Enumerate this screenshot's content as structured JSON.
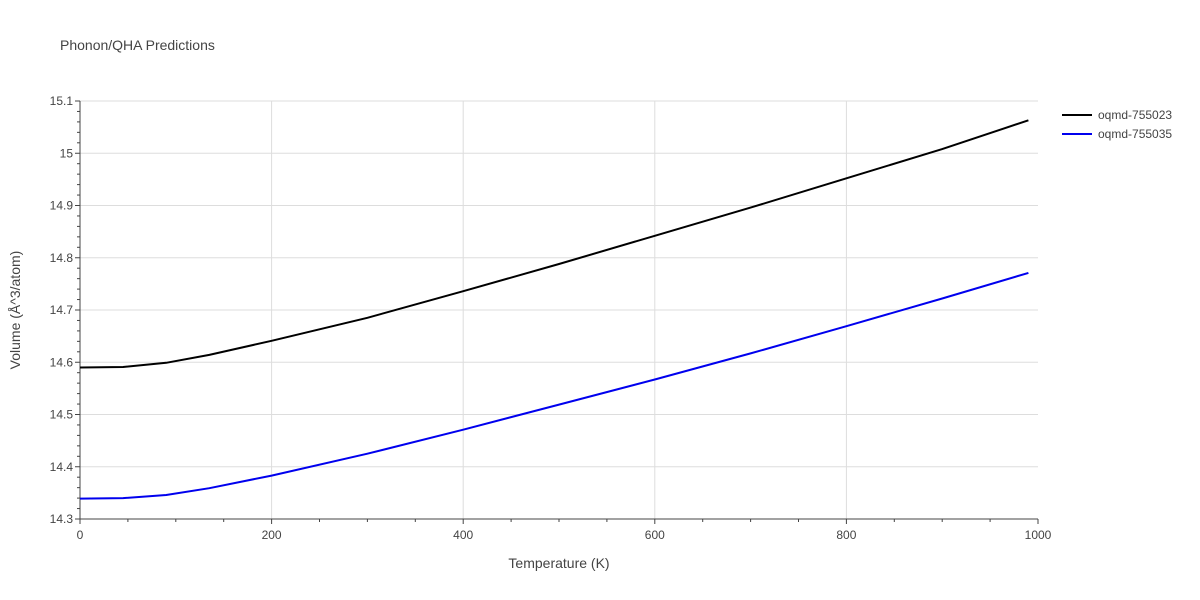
{
  "chart_data": {
    "type": "line",
    "title": "Phonon/QHA Predictions",
    "xlabel": "Temperature (K)",
    "ylabel": "Volume (Å^3/atom)",
    "xlim": [
      0,
      1000
    ],
    "ylim": [
      14.3,
      15.1
    ],
    "xticks": [
      0,
      200,
      400,
      600,
      800,
      1000
    ],
    "xtick_labels": [
      "0",
      "200",
      "400",
      "600",
      "800",
      "1000"
    ],
    "yticks": [
      14.3,
      14.4,
      14.5,
      14.6,
      14.7,
      14.8,
      14.9,
      15.0,
      15.1
    ],
    "ytick_labels": [
      "14.3",
      "14.4",
      "14.5",
      "14.6",
      "14.7",
      "14.8",
      "14.9",
      "15",
      "15.1"
    ],
    "grid": true,
    "legend_position": "top-right",
    "series": [
      {
        "name": "oqmd-755023",
        "color": "#000000",
        "x": [
          0,
          45,
          90,
          135,
          200,
          300,
          400,
          500,
          600,
          700,
          800,
          900,
          990
        ],
        "y": [
          14.59,
          14.591,
          14.599,
          14.614,
          14.641,
          14.685,
          14.736,
          14.788,
          14.842,
          14.896,
          14.952,
          15.008,
          15.063
        ]
      },
      {
        "name": "oqmd-755035",
        "color": "#0000ee",
        "x": [
          0,
          45,
          90,
          135,
          200,
          300,
          400,
          500,
          600,
          700,
          800,
          900,
          990
        ],
        "y": [
          14.339,
          14.34,
          14.346,
          14.359,
          14.383,
          14.425,
          14.471,
          14.519,
          14.567,
          14.617,
          14.669,
          14.722,
          14.771
        ]
      }
    ]
  }
}
